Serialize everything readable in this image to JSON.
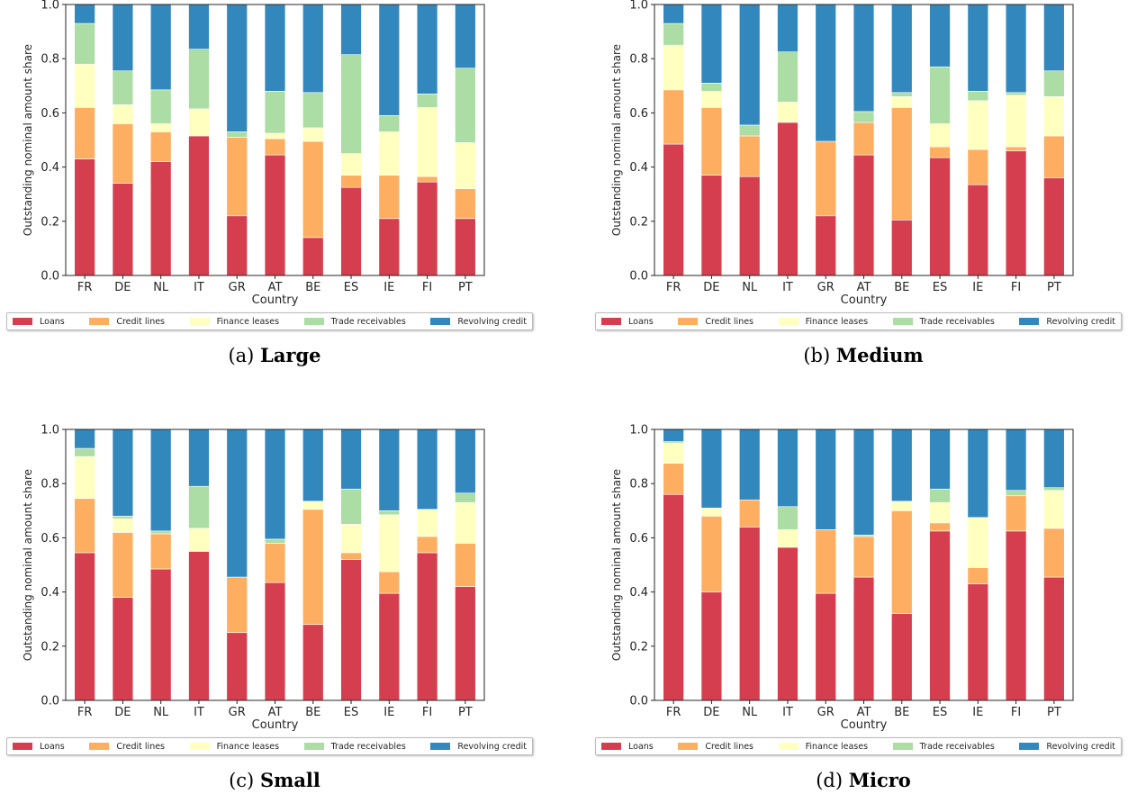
{
  "colors": {
    "Loans": "#d53e4f",
    "Credit lines": "#fdae61",
    "Finance leases": "#ffffbf",
    "Trade receivables": "#abdda4",
    "Revolving credit": "#3288bd"
  },
  "charts": [
    {
      "caption_prefix": "(a)",
      "caption_bold": "Large"
    },
    {
      "caption_prefix": "(b)",
      "caption_bold": "Medium"
    },
    {
      "caption_prefix": "(c)",
      "caption_bold": "Small"
    },
    {
      "caption_prefix": "(d)",
      "caption_bold": "Micro"
    }
  ],
  "chart_data": [
    {
      "type": "bar",
      "stacked": true,
      "categories": [
        "FR",
        "DE",
        "NL",
        "IT",
        "GR",
        "AT",
        "BE",
        "ES",
        "IE",
        "FI",
        "PT"
      ],
      "xlabel": "Country",
      "ylabel": "Outstanding nominal amount share",
      "ylim": [
        0,
        1.0
      ],
      "yticks": [
        "0.0",
        "0.2",
        "0.4",
        "0.6",
        "0.8",
        "1.0"
      ],
      "legend_position": "bottom",
      "series": [
        {
          "name": "Loans",
          "values": [
            0.43,
            0.34,
            0.42,
            0.515,
            0.22,
            0.445,
            0.14,
            0.325,
            0.21,
            0.345,
            0.21
          ]
        },
        {
          "name": "Credit lines",
          "values": [
            0.19,
            0.22,
            0.11,
            0.0,
            0.29,
            0.06,
            0.355,
            0.045,
            0.16,
            0.02,
            0.11
          ]
        },
        {
          "name": "Finance leases",
          "values": [
            0.16,
            0.07,
            0.03,
            0.1,
            0.0,
            0.02,
            0.05,
            0.08,
            0.16,
            0.255,
            0.17
          ]
        },
        {
          "name": "Trade receivables",
          "values": [
            0.15,
            0.125,
            0.125,
            0.22,
            0.02,
            0.155,
            0.13,
            0.365,
            0.06,
            0.05,
            0.275
          ]
        },
        {
          "name": "Revolving credit",
          "values": [
            0.07,
            0.245,
            0.315,
            0.165,
            0.47,
            0.32,
            0.325,
            0.185,
            0.41,
            0.33,
            0.235
          ]
        }
      ]
    },
    {
      "type": "bar",
      "stacked": true,
      "categories": [
        "FR",
        "DE",
        "NL",
        "IT",
        "GR",
        "AT",
        "BE",
        "ES",
        "IE",
        "FI",
        "PT"
      ],
      "xlabel": "Country",
      "ylabel": "Outstanding nominal amount share",
      "ylim": [
        0,
        1.0
      ],
      "yticks": [
        "0.0",
        "0.2",
        "0.4",
        "0.6",
        "0.8",
        "1.0"
      ],
      "legend_position": "bottom",
      "series": [
        {
          "name": "Loans",
          "values": [
            0.485,
            0.37,
            0.365,
            0.565,
            0.22,
            0.445,
            0.205,
            0.435,
            0.335,
            0.46,
            0.36
          ]
        },
        {
          "name": "Credit lines",
          "values": [
            0.2,
            0.25,
            0.15,
            0.0,
            0.275,
            0.12,
            0.415,
            0.04,
            0.13,
            0.015,
            0.155
          ]
        },
        {
          "name": "Finance leases",
          "values": [
            0.165,
            0.06,
            0.0,
            0.075,
            0.0,
            0.0,
            0.04,
            0.085,
            0.18,
            0.19,
            0.145
          ]
        },
        {
          "name": "Trade receivables",
          "values": [
            0.08,
            0.03,
            0.04,
            0.185,
            0.0,
            0.04,
            0.015,
            0.21,
            0.035,
            0.01,
            0.095
          ]
        },
        {
          "name": "Revolving credit",
          "values": [
            0.07,
            0.29,
            0.445,
            0.175,
            0.505,
            0.395,
            0.325,
            0.23,
            0.32,
            0.325,
            0.245
          ]
        }
      ]
    },
    {
      "type": "bar",
      "stacked": true,
      "categories": [
        "FR",
        "DE",
        "NL",
        "IT",
        "GR",
        "AT",
        "BE",
        "ES",
        "IE",
        "FI",
        "PT"
      ],
      "xlabel": "Country",
      "ylabel": "Outstanding nominal amount share",
      "ylim": [
        0,
        1.0
      ],
      "yticks": [
        "0.0",
        "0.2",
        "0.4",
        "0.6",
        "0.8",
        "1.0"
      ],
      "legend_position": "bottom",
      "series": [
        {
          "name": "Loans",
          "values": [
            0.545,
            0.38,
            0.485,
            0.55,
            0.25,
            0.435,
            0.28,
            0.52,
            0.395,
            0.545,
            0.42
          ]
        },
        {
          "name": "Credit lines",
          "values": [
            0.2,
            0.24,
            0.13,
            0.0,
            0.205,
            0.145,
            0.425,
            0.025,
            0.08,
            0.06,
            0.16
          ]
        },
        {
          "name": "Finance leases",
          "values": [
            0.155,
            0.05,
            0.0,
            0.085,
            0.0,
            0.0,
            0.03,
            0.105,
            0.21,
            0.1,
            0.15
          ]
        },
        {
          "name": "Trade receivables",
          "values": [
            0.03,
            0.01,
            0.01,
            0.155,
            0.0,
            0.015,
            0.0,
            0.13,
            0.015,
            0.0,
            0.035
          ]
        },
        {
          "name": "Revolving credit",
          "values": [
            0.07,
            0.32,
            0.375,
            0.21,
            0.545,
            0.405,
            0.265,
            0.22,
            0.3,
            0.295,
            0.235
          ]
        }
      ]
    },
    {
      "type": "bar",
      "stacked": true,
      "categories": [
        "FR",
        "DE",
        "NL",
        "IT",
        "GR",
        "AT",
        "BE",
        "ES",
        "IE",
        "FI",
        "PT"
      ],
      "xlabel": "Country",
      "ylabel": "Outstanding nominal amount share",
      "ylim": [
        0,
        1.0
      ],
      "yticks": [
        "0.0",
        "0.2",
        "0.4",
        "0.6",
        "0.8",
        "1.0"
      ],
      "legend_position": "bottom",
      "series": [
        {
          "name": "Loans",
          "values": [
            0.76,
            0.4,
            0.64,
            0.565,
            0.395,
            0.455,
            0.32,
            0.625,
            0.43,
            0.625,
            0.455
          ]
        },
        {
          "name": "Credit lines",
          "values": [
            0.115,
            0.28,
            0.1,
            0.0,
            0.235,
            0.15,
            0.38,
            0.03,
            0.06,
            0.13,
            0.18
          ]
        },
        {
          "name": "Finance leases",
          "values": [
            0.075,
            0.03,
            0.0,
            0.065,
            0.0,
            0.0,
            0.035,
            0.075,
            0.185,
            0.0,
            0.14
          ]
        },
        {
          "name": "Trade receivables",
          "values": [
            0.005,
            0.0,
            0.0,
            0.085,
            0.0,
            0.005,
            0.0,
            0.05,
            0.0,
            0.02,
            0.01
          ]
        },
        {
          "name": "Revolving credit",
          "values": [
            0.045,
            0.29,
            0.26,
            0.285,
            0.37,
            0.39,
            0.265,
            0.22,
            0.325,
            0.225,
            0.215
          ]
        }
      ]
    }
  ]
}
